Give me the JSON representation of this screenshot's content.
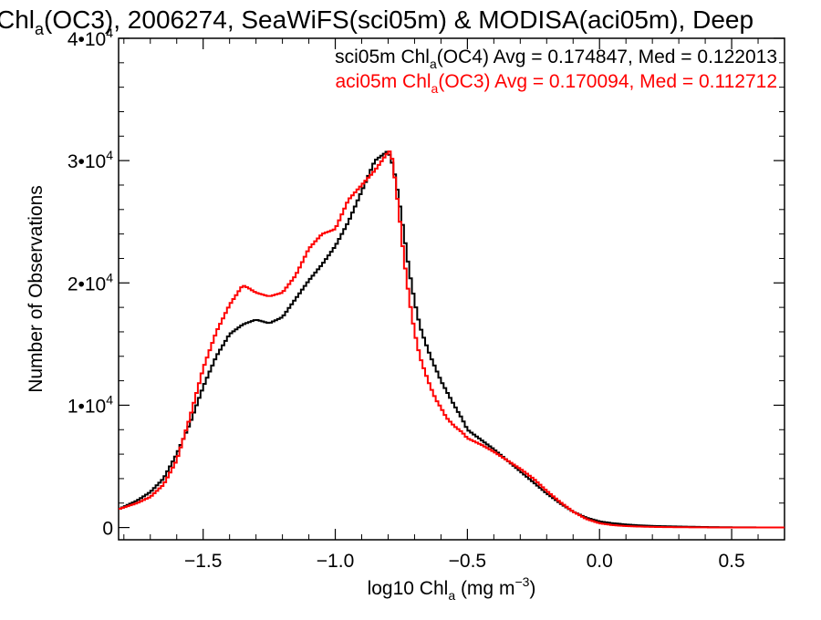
{
  "chart_data": {
    "type": "line",
    "title": {
      "a": "Chl",
      "a_sub": "a",
      "b": "(OC3), 2006274, SeaWiFS(sci05m) & MODISA(aci05m), Deep"
    },
    "xlabel": {
      "a": "log10 Chl",
      "a_sub": "a",
      "b": " (mg m",
      "b_sup": "−3",
      "c": ")"
    },
    "ylabel": "Number of Observations",
    "xlim": [
      -1.82,
      0.7
    ],
    "ylim": [
      -1000,
      40000
    ],
    "x_ticks": [
      {
        "value": -1.5,
        "label": "−1.5"
      },
      {
        "value": -1.0,
        "label": "−1.0"
      },
      {
        "value": -0.5,
        "label": "−0.5"
      },
      {
        "value": 0.0,
        "label": "0.0"
      },
      {
        "value": 0.5,
        "label": "0.5"
      }
    ],
    "y_ticks": [
      {
        "value": 0,
        "label": "0",
        "exp": ""
      },
      {
        "value": 10000,
        "label": "1•10",
        "exp": "4"
      },
      {
        "value": 20000,
        "label": "2•10",
        "exp": "4"
      },
      {
        "value": 30000,
        "label": "3•10",
        "exp": "4"
      },
      {
        "value": 40000,
        "label": "4•10",
        "exp": "4"
      }
    ],
    "legend_position": "top-right",
    "series": [
      {
        "color": "#000000",
        "legend": {
          "a": "sci05m Chl",
          "a_sub": "a",
          "b": "(OC4) Avg = 0.174847, Med = 0.122013"
        },
        "x": [
          -1.82,
          -1.75,
          -1.7,
          -1.65,
          -1.6,
          -1.55,
          -1.5,
          -1.45,
          -1.4,
          -1.35,
          -1.3,
          -1.25,
          -1.2,
          -1.15,
          -1.1,
          -1.05,
          -1.0,
          -0.95,
          -0.9,
          -0.85,
          -0.8,
          -0.78,
          -0.76,
          -0.74,
          -0.72,
          -0.7,
          -0.68,
          -0.66,
          -0.64,
          -0.62,
          -0.6,
          -0.58,
          -0.55,
          -0.52,
          -0.5,
          -0.45,
          -0.4,
          -0.35,
          -0.3,
          -0.25,
          -0.2,
          -0.15,
          -0.1,
          -0.05,
          0.0,
          0.05,
          0.1,
          0.15,
          0.2,
          0.3,
          0.4,
          0.5,
          0.6,
          0.7
        ],
        "y": [
          1500,
          2200,
          2900,
          4000,
          6000,
          8500,
          11500,
          14000,
          15800,
          16600,
          17000,
          16700,
          17200,
          18700,
          20200,
          21500,
          23000,
          25000,
          27500,
          30000,
          30800,
          29500,
          27000,
          24000,
          21000,
          18500,
          16500,
          15200,
          14000,
          13000,
          12000,
          11200,
          10000,
          8900,
          8000,
          7200,
          6400,
          5500,
          4600,
          3700,
          2800,
          2000,
          1300,
          800,
          500,
          350,
          250,
          180,
          130,
          80,
          40,
          20,
          10,
          5
        ]
      },
      {
        "color": "#ff0000",
        "legend": {
          "a": "aci05m Chl",
          "a_sub": "a",
          "b": "(OC3) Avg = 0.170094, Med = 0.112712"
        },
        "x": [
          -1.82,
          -1.75,
          -1.7,
          -1.65,
          -1.6,
          -1.55,
          -1.5,
          -1.45,
          -1.4,
          -1.35,
          -1.33,
          -1.3,
          -1.25,
          -1.2,
          -1.15,
          -1.1,
          -1.05,
          -1.0,
          -0.95,
          -0.9,
          -0.85,
          -0.8,
          -0.79,
          -0.78,
          -0.76,
          -0.74,
          -0.72,
          -0.7,
          -0.68,
          -0.66,
          -0.64,
          -0.62,
          -0.6,
          -0.58,
          -0.55,
          -0.52,
          -0.5,
          -0.45,
          -0.4,
          -0.35,
          -0.3,
          -0.25,
          -0.2,
          -0.15,
          -0.1,
          -0.05,
          0.0,
          0.05,
          0.1,
          0.15,
          0.2,
          0.3,
          0.4,
          0.5,
          0.6,
          0.7
        ],
        "y": [
          1500,
          2000,
          2500,
          3500,
          5500,
          9000,
          13000,
          16000,
          18200,
          19800,
          19600,
          19200,
          18900,
          19200,
          20600,
          22800,
          24000,
          24400,
          26800,
          28000,
          29200,
          30700,
          30800,
          29500,
          26000,
          22000,
          18700,
          16000,
          14000,
          12700,
          11500,
          10500,
          9800,
          9000,
          8300,
          7800,
          7300,
          6800,
          6200,
          5500,
          4800,
          4000,
          3000,
          2100,
          1300,
          700,
          350,
          200,
          120,
          80,
          50,
          25,
          12,
          6,
          3,
          2
        ]
      }
    ]
  }
}
